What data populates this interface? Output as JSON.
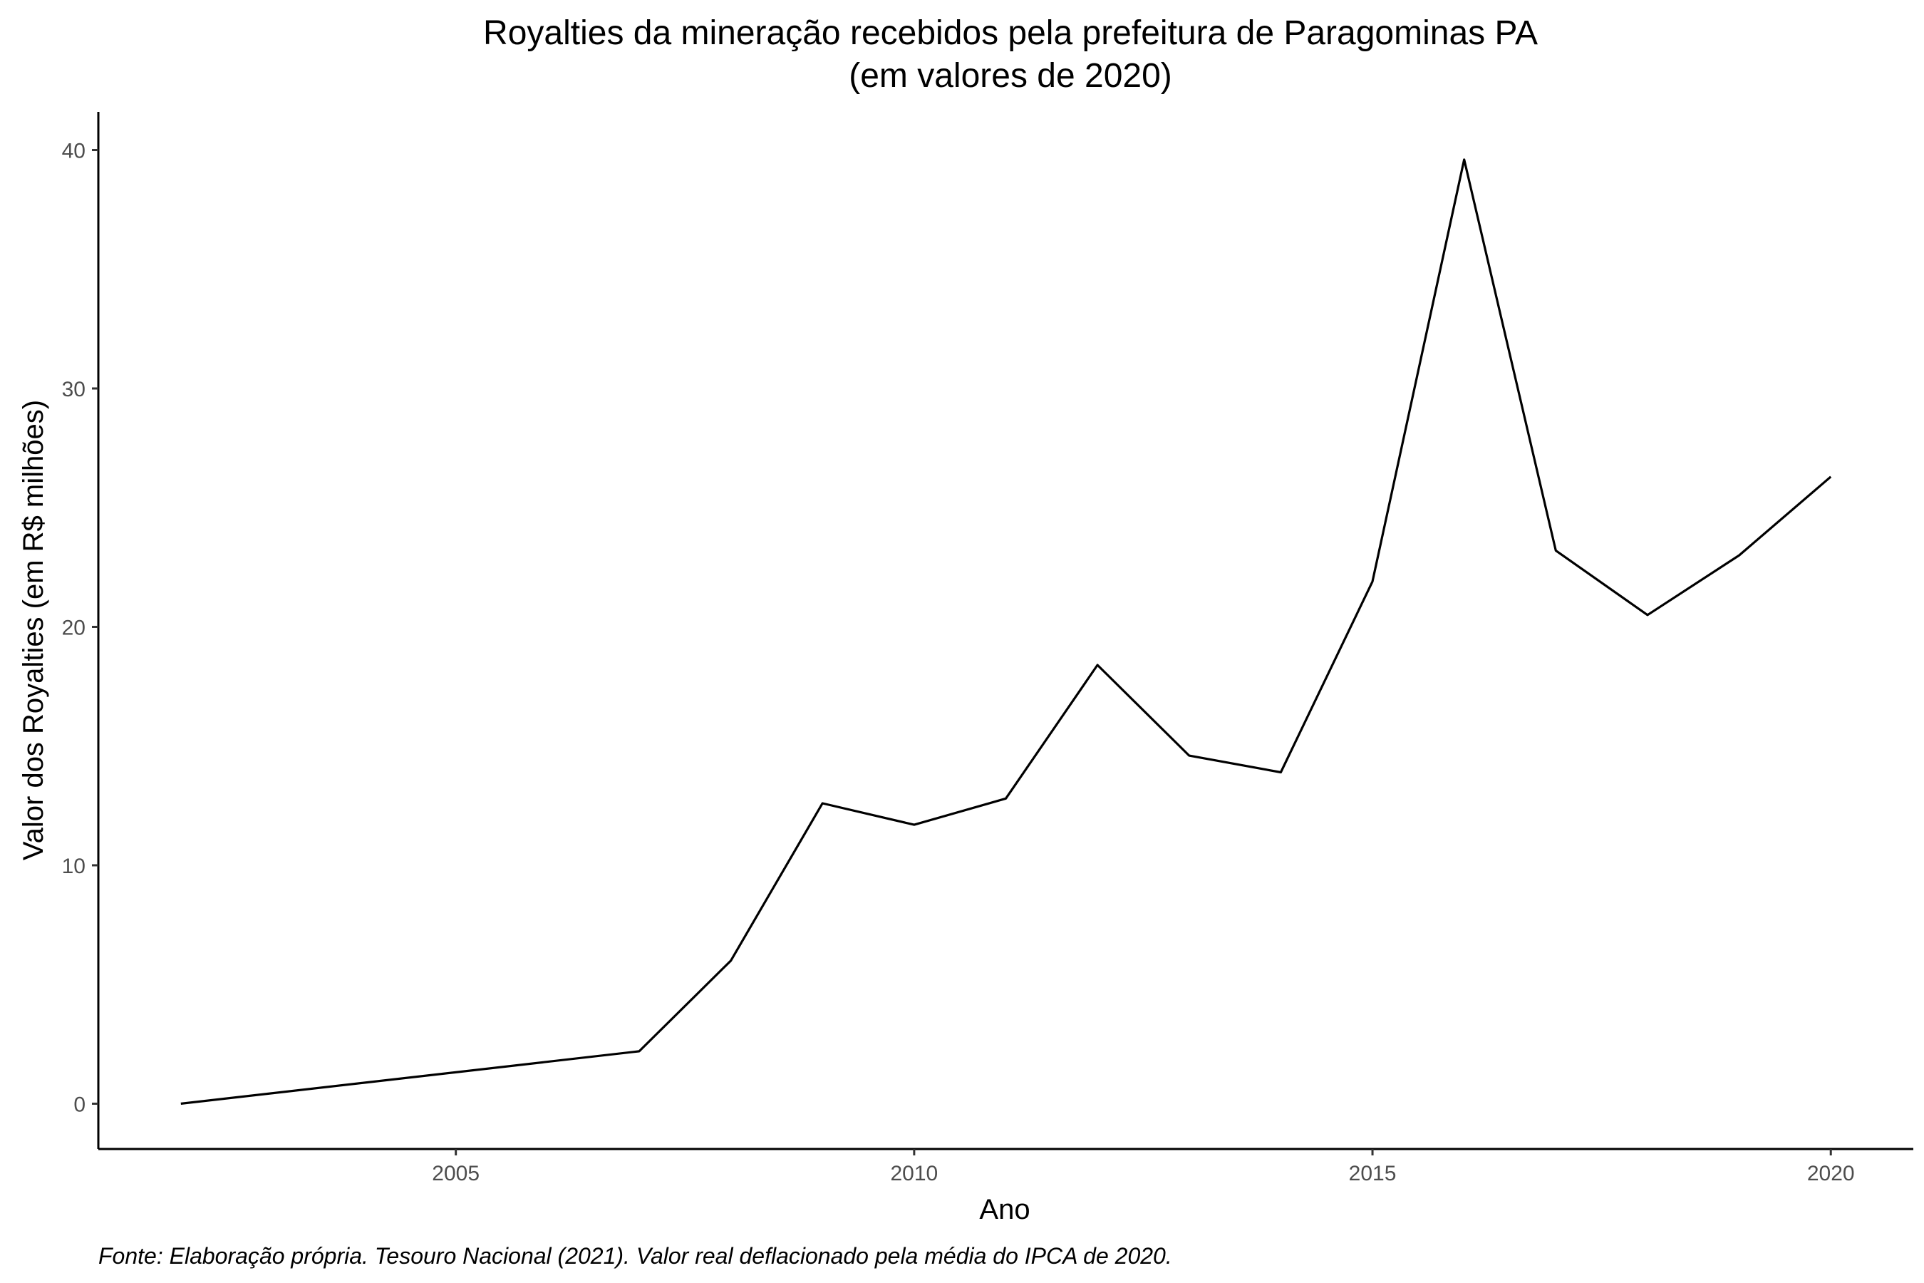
{
  "chart_data": {
    "type": "line",
    "title": "Royalties da mineração recebidos pela prefeitura de Paragominas PA",
    "subtitle": "(em valores de 2020)",
    "xlabel": "Ano",
    "ylabel": "Valor dos Royalties (em R$ milhões)",
    "caption": "Fonte: Elaboração própria. Tesouro Nacional (2021). Valor real deflacionado pela média do IPCA de 2020.",
    "x": [
      2002,
      2007,
      2008,
      2009,
      2010,
      2011,
      2012,
      2013,
      2014,
      2015,
      2016,
      2017,
      2018,
      2019,
      2020
    ],
    "y": [
      0.0,
      2.2,
      6.0,
      12.6,
      11.7,
      12.8,
      18.4,
      14.6,
      13.9,
      21.9,
      39.6,
      23.2,
      20.5,
      23.0,
      26.3
    ],
    "xlim": [
      2001.1,
      2020.9
    ],
    "ylim": [
      -1.9,
      41.6
    ],
    "xticks": [
      2005,
      2010,
      2015,
      2020
    ],
    "xtick_labels": [
      "2005",
      "2010",
      "2015",
      "2020"
    ],
    "yticks": [
      0,
      10,
      20,
      30,
      40
    ],
    "ytick_labels": [
      "0",
      "10",
      "20",
      "30",
      "40"
    ],
    "grid": false,
    "line_color": "#000000"
  }
}
